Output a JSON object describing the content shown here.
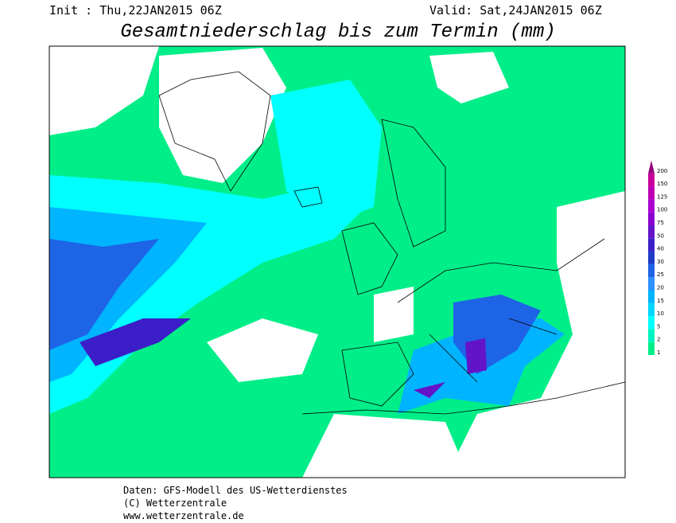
{
  "header": {
    "init": "Init : Thu,22JAN2015 06Z",
    "valid": "Valid: Sat,24JAN2015 06Z",
    "title": "Gesamtniederschlag bis zum Termin (mm)"
  },
  "colorbar": {
    "levels": [
      1,
      2,
      5,
      10,
      15,
      20,
      25,
      30,
      40,
      50,
      75,
      100,
      125,
      150,
      200
    ],
    "colors": [
      "#00ee88",
      "#00f4c0",
      "#00ffff",
      "#00d8ff",
      "#00b4ff",
      "#2c90ff",
      "#1e64e6",
      "#1e3cc8",
      "#3c1ec8",
      "#6414c8",
      "#8c00d2",
      "#aa00d2",
      "#be00b4",
      "#c8009c",
      "#96007c"
    ]
  },
  "footer": {
    "line1": "Daten: GFS-Modell des US-Wetterdienstes",
    "line2": "(C) Wetterzentrale",
    "line3": "www.wetterzentrale.de"
  }
}
